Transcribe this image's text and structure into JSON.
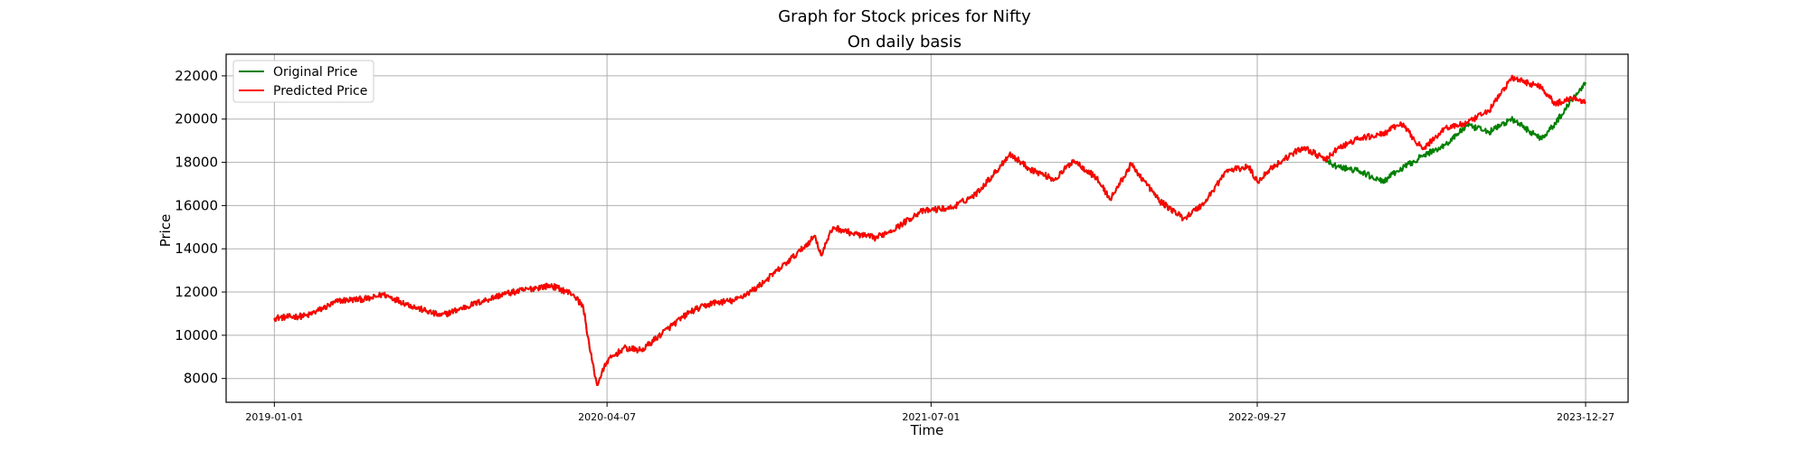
{
  "suptitle": "Graph for Stock prices for Nifty",
  "chart_data": {
    "type": "line",
    "title": "On daily basis",
    "xlabel": "Time",
    "ylabel": "Price",
    "xlim": [
      "2018-10-26",
      "2024-02-24"
    ],
    "ylim": [
      6900,
      23000
    ],
    "grid": true,
    "legend_position": "top-left",
    "x_ticks": [
      "2019-01-01",
      "2020-04-07",
      "2021-07-01",
      "2022-09-27",
      "2023-12-27"
    ],
    "y_ticks": [
      8000,
      10000,
      12000,
      14000,
      16000,
      18000,
      20000,
      22000
    ],
    "series": [
      {
        "name": "Original Price",
        "color": "#008000",
        "x": [
          "2019-01-01",
          "2019-02-15",
          "2019-04-01",
          "2019-05-15",
          "2019-06-01",
          "2019-07-15",
          "2019-08-20",
          "2019-10-01",
          "2019-11-15",
          "2019-12-31",
          "2020-01-20",
          "2020-02-20",
          "2020-03-05",
          "2020-03-15",
          "2020-03-24",
          "2020-04-07",
          "2020-04-30",
          "2020-05-25",
          "2020-06-30",
          "2020-08-01",
          "2020-09-01",
          "2020-10-01",
          "2020-11-01",
          "2020-11-30",
          "2020-12-31",
          "2021-01-21",
          "2021-01-29",
          "2021-02-15",
          "2021-03-15",
          "2021-04-15",
          "2021-05-15",
          "2021-06-15",
          "2021-07-01",
          "2021-07-30",
          "2021-08-31",
          "2021-09-30",
          "2021-10-18",
          "2021-11-15",
          "2021-12-20",
          "2022-01-15",
          "2022-02-15",
          "2022-03-07",
          "2022-04-05",
          "2022-05-15",
          "2022-06-17",
          "2022-07-15",
          "2022-08-15",
          "2022-09-15",
          "2022-09-27",
          "2022-10-15",
          "2022-11-15",
          "2022-12-01",
          "2022-12-31",
          "2023-01-15",
          "2023-02-15",
          "2023-03-20",
          "2023-04-15",
          "2023-05-15",
          "2023-06-15",
          "2023-07-15",
          "2023-08-15",
          "2023-09-15",
          "2023-10-26",
          "2023-11-15",
          "2023-12-10",
          "2023-12-27"
        ],
        "values": [
          10800,
          10900,
          11600,
          11700,
          11900,
          11300,
          10900,
          11400,
          11900,
          12200,
          12300,
          11900,
          11300,
          9200,
          7700,
          8800,
          9400,
          9300,
          10300,
          11100,
          11500,
          11600,
          12200,
          13000,
          13900,
          14600,
          13700,
          15000,
          14700,
          14500,
          15000,
          15700,
          15800,
          15900,
          16500,
          17600,
          18400,
          17700,
          17200,
          18100,
          17300,
          16300,
          17900,
          16200,
          15400,
          16100,
          17600,
          17800,
          17100,
          17700,
          18400,
          18700,
          18100,
          17800,
          17600,
          17100,
          17700,
          18300,
          18800,
          19700,
          19400,
          20000,
          19100,
          19800,
          21000,
          21700
        ]
      },
      {
        "name": "Predicted Price",
        "color": "#ff0000",
        "x": [
          "2019-01-01",
          "2019-02-15",
          "2019-04-01",
          "2019-05-15",
          "2019-06-01",
          "2019-07-15",
          "2019-08-20",
          "2019-10-01",
          "2019-11-15",
          "2019-12-31",
          "2020-01-20",
          "2020-02-20",
          "2020-03-05",
          "2020-03-15",
          "2020-03-24",
          "2020-04-07",
          "2020-04-30",
          "2020-05-25",
          "2020-06-30",
          "2020-08-01",
          "2020-09-01",
          "2020-10-01",
          "2020-11-01",
          "2020-11-30",
          "2020-12-31",
          "2021-01-21",
          "2021-01-29",
          "2021-02-15",
          "2021-03-15",
          "2021-04-15",
          "2021-05-15",
          "2021-06-15",
          "2021-07-01",
          "2021-07-30",
          "2021-08-31",
          "2021-09-30",
          "2021-10-18",
          "2021-11-15",
          "2021-12-20",
          "2022-01-15",
          "2022-02-15",
          "2022-03-07",
          "2022-04-05",
          "2022-05-15",
          "2022-06-17",
          "2022-07-15",
          "2022-08-15",
          "2022-09-15",
          "2022-09-27",
          "2022-10-15",
          "2022-11-15",
          "2022-12-01",
          "2022-12-31",
          "2023-01-15",
          "2023-02-15",
          "2023-03-20",
          "2023-04-15",
          "2023-05-15",
          "2023-06-15",
          "2023-07-15",
          "2023-08-15",
          "2023-09-15",
          "2023-10-26",
          "2023-11-15",
          "2023-12-10",
          "2023-12-27"
        ],
        "values": [
          10800,
          10900,
          11600,
          11700,
          11900,
          11300,
          10900,
          11400,
          11900,
          12200,
          12300,
          11900,
          11300,
          9200,
          7700,
          8800,
          9400,
          9300,
          10300,
          11100,
          11500,
          11600,
          12200,
          13000,
          13900,
          14600,
          13700,
          15000,
          14700,
          14500,
          15000,
          15700,
          15800,
          15900,
          16500,
          17600,
          18400,
          17700,
          17200,
          18100,
          17300,
          16300,
          17900,
          16200,
          15400,
          16100,
          17600,
          17800,
          17100,
          17700,
          18400,
          18700,
          18100,
          18600,
          19100,
          19300,
          19800,
          18600,
          19600,
          19800,
          20400,
          21900,
          21500,
          20700,
          21000,
          20800
        ]
      }
    ]
  }
}
